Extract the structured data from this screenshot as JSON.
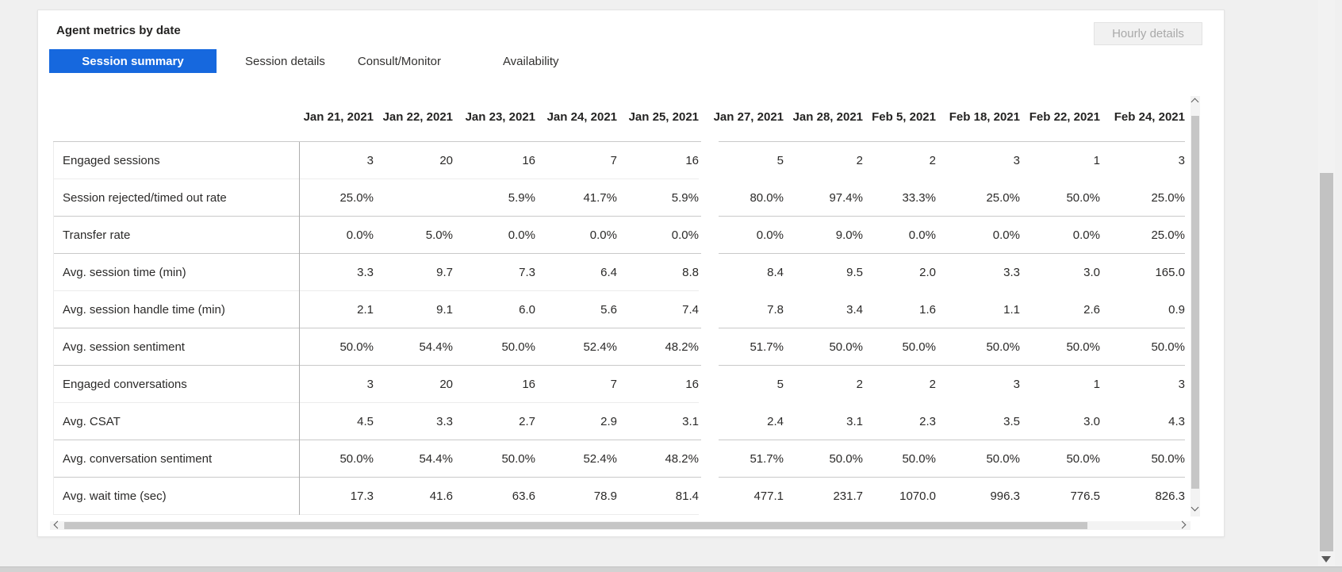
{
  "header": {
    "title": "Agent metrics by date",
    "hourly_details_label": "Hourly details"
  },
  "tabs": [
    {
      "label": "Session summary",
      "active": true
    },
    {
      "label": "Session details",
      "active": false
    },
    {
      "label": "Consult/Monitor",
      "active": false
    },
    {
      "label": "Availability",
      "active": false
    }
  ],
  "table": {
    "date_columns": [
      "Jan 21, 2021",
      "Jan 22, 2021",
      "Jan 23, 2021",
      "Jan 24, 2021",
      "Jan 25, 2021",
      "Jan 27, 2021",
      "Jan 28, 2021",
      "Feb 5, 2021",
      "Feb 18, 2021",
      "Feb 22, 2021",
      "Feb 24, 2021"
    ],
    "rows": [
      {
        "label": "Engaged sessions",
        "group_end": false,
        "values": [
          "3",
          "20",
          "16",
          "7",
          "16",
          "5",
          "2",
          "2",
          "3",
          "1",
          "3"
        ]
      },
      {
        "label": "Session rejected/timed out rate",
        "group_end": true,
        "values": [
          "25.0%",
          "",
          "5.9%",
          "41.7%",
          "5.9%",
          "80.0%",
          "97.4%",
          "33.3%",
          "25.0%",
          "50.0%",
          "25.0%"
        ]
      },
      {
        "label": "Transfer rate",
        "group_end": true,
        "values": [
          "0.0%",
          "5.0%",
          "0.0%",
          "0.0%",
          "0.0%",
          "0.0%",
          "9.0%",
          "0.0%",
          "0.0%",
          "0.0%",
          "25.0%"
        ]
      },
      {
        "label": "Avg. session time (min)",
        "group_end": false,
        "values": [
          "3.3",
          "9.7",
          "7.3",
          "6.4",
          "8.8",
          "8.4",
          "9.5",
          "2.0",
          "3.3",
          "3.0",
          "165.0"
        ]
      },
      {
        "label": "Avg. session handle time (min)",
        "group_end": true,
        "values": [
          "2.1",
          "9.1",
          "6.0",
          "5.6",
          "7.4",
          "7.8",
          "3.4",
          "1.6",
          "1.1",
          "2.6",
          "0.9"
        ]
      },
      {
        "label": "Avg. session sentiment",
        "group_end": true,
        "values": [
          "50.0%",
          "54.4%",
          "50.0%",
          "52.4%",
          "48.2%",
          "51.7%",
          "50.0%",
          "50.0%",
          "50.0%",
          "50.0%",
          "50.0%"
        ]
      },
      {
        "label": "Engaged conversations",
        "group_end": false,
        "values": [
          "3",
          "20",
          "16",
          "7",
          "16",
          "5",
          "2",
          "2",
          "3",
          "1",
          "3"
        ]
      },
      {
        "label": "Avg. CSAT",
        "group_end": true,
        "values": [
          "4.5",
          "3.3",
          "2.7",
          "2.9",
          "3.1",
          "2.4",
          "3.1",
          "2.3",
          "3.5",
          "3.0",
          "4.3"
        ]
      },
      {
        "label": "Avg. conversation sentiment",
        "group_end": true,
        "values": [
          "50.0%",
          "54.4%",
          "50.0%",
          "52.4%",
          "48.2%",
          "51.7%",
          "50.0%",
          "50.0%",
          "50.0%",
          "50.0%",
          "50.0%"
        ]
      },
      {
        "label": "Avg. wait time (sec)",
        "group_end": false,
        "values": [
          "17.3",
          "41.6",
          "63.6",
          "78.9",
          "81.4",
          "477.1",
          "231.7",
          "1070.0",
          "996.3",
          "776.5",
          "826.3"
        ]
      }
    ]
  },
  "colors": {
    "accent_blue": "#1668de",
    "page_background": "#f0f0f0",
    "group_border": "#c9c9c9",
    "inner_border": "#ececec",
    "scroll_thumb": "#c6c6c6",
    "disabled_text": "#a9a9a9"
  }
}
